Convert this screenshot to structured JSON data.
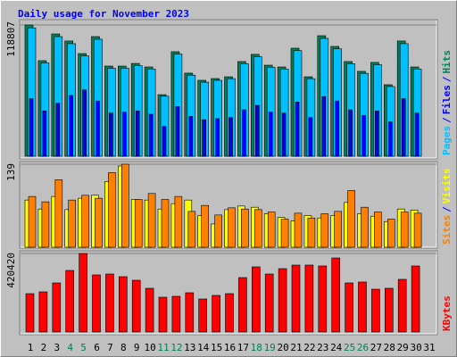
{
  "title": "Daily usage for November 2023",
  "legend_separator": "/",
  "chart_data": [
    {
      "type": "bar",
      "series": [
        {
          "name": "Hits",
          "color": "#00805c",
          "values": [
            118807,
            86500,
            110700,
            104300,
            92900,
            108300,
            81600,
            81600,
            84000,
            80800,
            55700,
            94600,
            75200,
            68700,
            70300,
            71900,
            85700,
            92200,
            82400,
            80800,
            97800,
            71900,
            109100,
            99400,
            85700,
            76800,
            84900,
            64700,
            104300,
            80800,
            null
          ]
        },
        {
          "name": "Files",
          "color": "#0000ff",
          "values": [
            52000,
            41000,
            48000,
            55000,
            60000,
            50000,
            39000,
            40000,
            41000,
            38000,
            27000,
            45000,
            36000,
            33000,
            34000,
            35000,
            42000,
            46000,
            40000,
            39000,
            49000,
            35000,
            54000,
            50000,
            42000,
            37000,
            41000,
            31000,
            52000,
            39000,
            null
          ]
        },
        {
          "name": "Pages",
          "color": "#00c0ff",
          "values": [
            116200,
            84500,
            108300,
            101900,
            90800,
            105900,
            79600,
            79700,
            82000,
            78900,
            54300,
            92500,
            73400,
            67000,
            68700,
            70200,
            83700,
            90100,
            80500,
            78900,
            95600,
            70200,
            106700,
            97200,
            83700,
            75000,
            82900,
            63100,
            101900,
            78900,
            null
          ]
        }
      ],
      "ylim": [
        0,
        118807
      ],
      "yticks": [
        118807
      ]
    },
    {
      "type": "bar",
      "series": [
        {
          "name": "Visits",
          "color": "#ffff00",
          "values": [
            79,
            64,
            85,
            63,
            82,
            87,
            110,
            136,
            80,
            79,
            64,
            73,
            79,
            53,
            39,
            63,
            69,
            67,
            56,
            50,
            44,
            53,
            49,
            53,
            75,
            56,
            52,
            43,
            64,
            62,
            null
          ]
        },
        {
          "name": "Sites",
          "color": "#ff8000",
          "values": [
            85,
            76,
            113,
            79,
            87,
            82,
            125,
            139,
            80,
            90,
            80,
            85,
            60,
            70,
            54,
            66,
            64,
            63,
            59,
            47,
            57,
            49,
            56,
            60,
            95,
            67,
            59,
            47,
            59,
            57,
            null
          ]
        }
      ],
      "ylim": [
        0,
        139
      ],
      "yticks": [
        139
      ]
    },
    {
      "type": "bar",
      "series": [
        {
          "name": "KBytes",
          "color": "#ff0000",
          "values": [
            205400,
            215000,
            262800,
            329600,
            420420,
            305800,
            310500,
            296200,
            277100,
            234100,
            186300,
            191100,
            210200,
            176800,
            195900,
            205400,
            291400,
            348800,
            310500,
            339200,
            358300,
            358300,
            353600,
            396500,
            262800,
            267600,
            229300,
            234100,
            281900,
            353600,
            null
          ]
        }
      ],
      "ylim": [
        0,
        420420
      ],
      "yticks": [
        420420
      ],
      "categories": [
        "1",
        "2",
        "3",
        "4",
        "5",
        "6",
        "7",
        "8",
        "9",
        "10",
        "11",
        "12",
        "13",
        "14",
        "15",
        "16",
        "17",
        "18",
        "19",
        "20",
        "21",
        "22",
        "23",
        "24",
        "25",
        "26",
        "27",
        "28",
        "29",
        "30",
        "31"
      ],
      "category_colors": [
        "#000000",
        "#000000",
        "#000000",
        "#00805c",
        "#00805c",
        "#000000",
        "#000000",
        "#000000",
        "#000000",
        "#000000",
        "#00805c",
        "#00805c",
        "#000000",
        "#000000",
        "#000000",
        "#000000",
        "#000000",
        "#00805c",
        "#00805c",
        "#000000",
        "#000000",
        "#000000",
        "#000000",
        "#000000",
        "#00805c",
        "#00805c",
        "#000000",
        "#000000",
        "#000000",
        "#000000",
        "#000000"
      ]
    }
  ]
}
